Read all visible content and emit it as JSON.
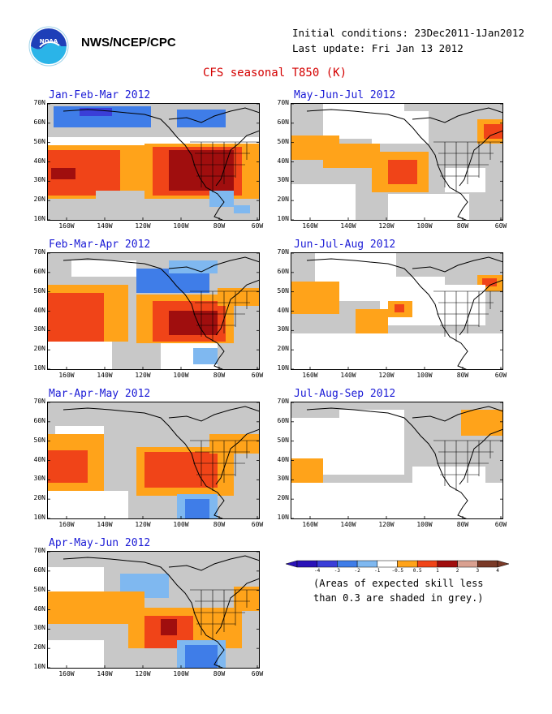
{
  "header": {
    "agency": "NWS/NCEP/CPC",
    "initial_conditions": "Initial conditions: 23Dec2011-1Jan2012",
    "last_update": "Last update: Fri Jan 13 2012",
    "title": "CFS seasonal T850 (K)"
  },
  "axes": {
    "y_labels": [
      "70N",
      "60N",
      "50N",
      "40N",
      "30N",
      "20N",
      "10N"
    ],
    "x_labels": [
      "160W",
      "140W",
      "120W",
      "100W",
      "80W",
      "60W"
    ]
  },
  "panels": [
    {
      "title": "Jan-Feb-Mar 2012"
    },
    {
      "title": "May-Jun-Jul 2012"
    },
    {
      "title": "Feb-Mar-Apr 2012"
    },
    {
      "title": "Jun-Jul-Aug 2012"
    },
    {
      "title": "Mar-Apr-May 2012"
    },
    {
      "title": "Jul-Aug-Sep 2012"
    },
    {
      "title": "Apr-May-Jun 2012"
    }
  ],
  "legend": {
    "labels": [
      "-4",
      "-3",
      "-2",
      "-1",
      "-0.5",
      "0.5",
      "1",
      "2",
      "3",
      "4"
    ],
    "colors": [
      "#2a12b8",
      "#3a3ed8",
      "#3f7de8",
      "#7fb8f0",
      "#ffffff",
      "#ffa31a",
      "#f04418",
      "#a00e0e",
      "#d9a090",
      "#7a3a28"
    ],
    "note_line1": "(Areas of expected skill less",
    "note_line2": "than 0.3 are shaded in grey.)"
  }
}
